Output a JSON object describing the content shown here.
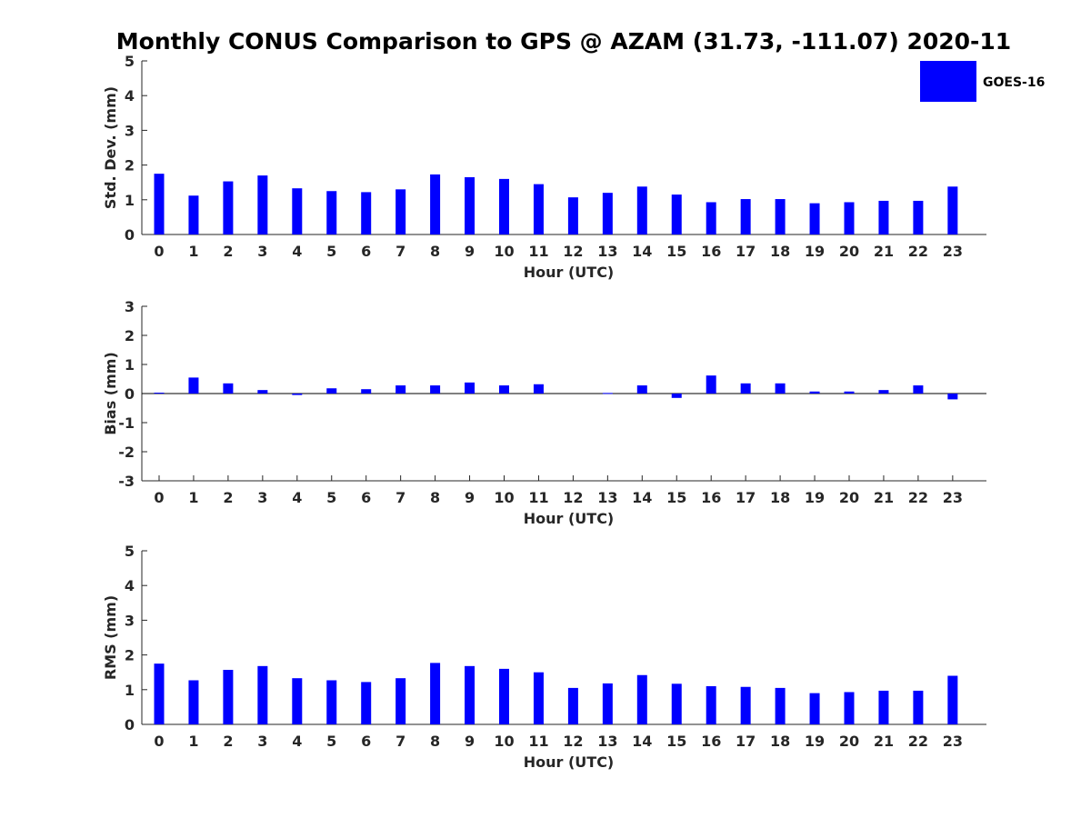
{
  "figure": {
    "title": "Monthly CONUS Comparison to GPS @ AZAM (31.73, -111.07) 2020-11"
  },
  "legend": {
    "label": "GOES-16",
    "color": "#0000ff"
  },
  "chart_data": [
    {
      "id": "std",
      "type": "bar",
      "xlabel": "Hour (UTC)",
      "ylabel": "Std. Dev. (mm)",
      "ylim": [
        0,
        5
      ],
      "yticks": [
        0,
        1,
        2,
        3,
        4,
        5
      ],
      "categories": [
        0,
        1,
        2,
        3,
        4,
        5,
        6,
        7,
        8,
        9,
        10,
        11,
        12,
        13,
        14,
        15,
        16,
        17,
        18,
        19,
        20,
        21,
        22,
        23
      ],
      "series": [
        {
          "name": "GOES-16",
          "color": "#0000ff",
          "values": [
            1.75,
            1.12,
            1.53,
            1.7,
            1.33,
            1.25,
            1.22,
            1.3,
            1.73,
            1.65,
            1.6,
            1.45,
            1.07,
            1.2,
            1.38,
            1.15,
            0.93,
            1.02,
            1.02,
            0.9,
            0.93,
            0.97,
            0.97,
            1.38
          ]
        }
      ]
    },
    {
      "id": "bias",
      "type": "bar",
      "xlabel": "Hour (UTC)",
      "ylabel": "Bias (mm)",
      "ylim": [
        -3,
        3
      ],
      "yticks": [
        -3,
        -2,
        -1,
        0,
        1,
        2,
        3
      ],
      "categories": [
        0,
        1,
        2,
        3,
        4,
        5,
        6,
        7,
        8,
        9,
        10,
        11,
        12,
        13,
        14,
        15,
        16,
        17,
        18,
        19,
        20,
        21,
        22,
        23
      ],
      "series": [
        {
          "name": "GOES-16",
          "color": "#0000ff",
          "values": [
            0.03,
            0.55,
            0.35,
            0.12,
            -0.05,
            0.18,
            0.15,
            0.28,
            0.28,
            0.38,
            0.28,
            0.32,
            0.0,
            0.02,
            0.28,
            -0.15,
            0.62,
            0.35,
            0.35,
            0.07,
            0.07,
            0.12,
            0.28,
            -0.2
          ]
        }
      ]
    },
    {
      "id": "rms",
      "type": "bar",
      "xlabel": "Hour (UTC)",
      "ylabel": "RMS (mm)",
      "ylim": [
        0,
        5
      ],
      "yticks": [
        0,
        1,
        2,
        3,
        4,
        5
      ],
      "categories": [
        0,
        1,
        2,
        3,
        4,
        5,
        6,
        7,
        8,
        9,
        10,
        11,
        12,
        13,
        14,
        15,
        16,
        17,
        18,
        19,
        20,
        21,
        22,
        23
      ],
      "series": [
        {
          "name": "GOES-16",
          "color": "#0000ff",
          "values": [
            1.75,
            1.27,
            1.57,
            1.68,
            1.33,
            1.27,
            1.22,
            1.33,
            1.77,
            1.68,
            1.6,
            1.5,
            1.05,
            1.18,
            1.42,
            1.17,
            1.1,
            1.08,
            1.05,
            0.9,
            0.93,
            0.97,
            0.97,
            1.4
          ]
        }
      ]
    }
  ]
}
